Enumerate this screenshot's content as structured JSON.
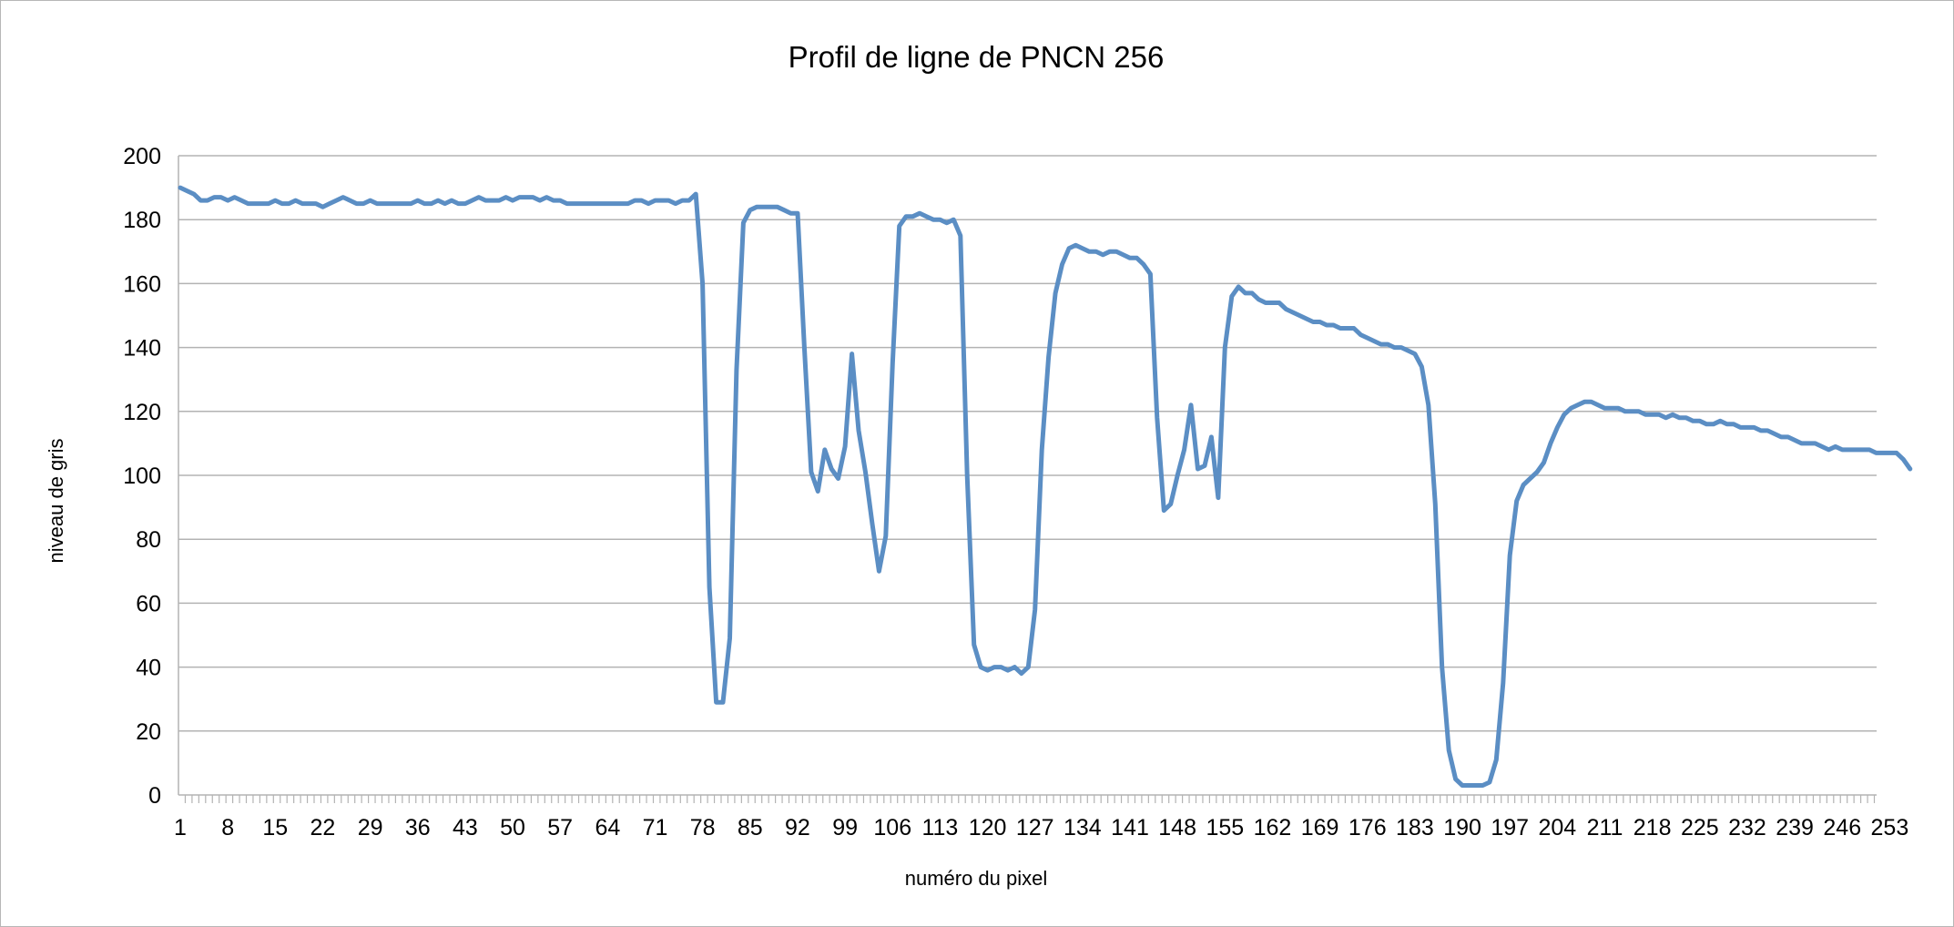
{
  "chart_data": {
    "type": "line",
    "title": "Profil de ligne de PNCN 256",
    "xlabel": "numéro du pixel",
    "ylabel": "niveau de gris",
    "ylim": [
      0,
      200
    ],
    "yticks": [
      0,
      20,
      40,
      60,
      80,
      100,
      120,
      140,
      160,
      180,
      200
    ],
    "xlim": [
      1,
      256
    ],
    "xtick_labels": [
      "1",
      "8",
      "15",
      "22",
      "29",
      "36",
      "43",
      "50",
      "57",
      "64",
      "71",
      "78",
      "85",
      "92",
      "99",
      "106",
      "113",
      "120",
      "127",
      "134",
      "141",
      "148",
      "155",
      "162",
      "169",
      "176",
      "183",
      "190",
      "197",
      "204",
      "211",
      "218",
      "225",
      "232",
      "239",
      "246",
      "253"
    ],
    "grid": "horizontal",
    "legend": "none",
    "line_color": "#5b8ec4",
    "x": [
      1,
      2,
      3,
      4,
      5,
      6,
      7,
      8,
      9,
      10,
      11,
      12,
      13,
      14,
      15,
      16,
      17,
      18,
      19,
      20,
      21,
      22,
      23,
      24,
      25,
      26,
      27,
      28,
      29,
      30,
      31,
      32,
      33,
      34,
      35,
      36,
      37,
      38,
      39,
      40,
      41,
      42,
      43,
      44,
      45,
      46,
      47,
      48,
      49,
      50,
      51,
      52,
      53,
      54,
      55,
      56,
      57,
      58,
      59,
      60,
      61,
      62,
      63,
      64,
      65,
      66,
      67,
      68,
      69,
      70,
      71,
      72,
      73,
      74,
      75,
      76,
      77,
      78,
      79,
      80,
      81,
      82,
      83,
      84,
      85,
      86,
      87,
      88,
      89,
      90,
      91,
      92,
      93,
      94,
      95,
      96,
      97,
      98,
      99,
      100,
      101,
      102,
      103,
      104,
      105,
      106,
      107,
      108,
      109,
      110,
      111,
      112,
      113,
      114,
      115,
      116,
      117,
      118,
      119,
      120,
      121,
      122,
      123,
      124,
      125,
      126,
      127,
      128,
      129,
      130,
      131,
      132,
      133,
      134,
      135,
      136,
      137,
      138,
      139,
      140,
      141,
      142,
      143,
      144,
      145,
      146,
      147,
      148,
      149,
      150,
      151,
      152,
      153,
      154,
      155,
      156,
      157,
      158,
      159,
      160,
      161,
      162,
      163,
      164,
      165,
      166,
      167,
      168,
      169,
      170,
      171,
      172,
      173,
      174,
      175,
      176,
      177,
      178,
      179,
      180,
      181,
      182,
      183,
      184,
      185,
      186,
      187,
      188,
      189,
      190,
      191,
      192,
      193,
      194,
      195,
      196,
      197,
      198,
      199,
      200,
      201,
      202,
      203,
      204,
      205,
      206,
      207,
      208,
      209,
      210,
      211,
      212,
      213,
      214,
      215,
      216,
      217,
      218,
      219,
      220,
      221,
      222,
      223,
      224,
      225,
      226,
      227,
      228,
      229,
      230,
      231,
      232,
      233,
      234,
      235,
      236,
      237,
      238,
      239,
      240,
      241,
      242,
      243,
      244,
      245,
      246,
      247,
      248,
      249,
      250,
      251,
      252,
      253,
      254,
      255,
      256
    ],
    "series": [
      {
        "values": [
          190,
          189,
          188,
          186,
          186,
          187,
          187,
          186,
          187,
          186,
          185,
          185,
          185,
          185,
          186,
          185,
          185,
          186,
          185,
          185,
          185,
          184,
          185,
          186,
          187,
          186,
          185,
          185,
          186,
          185,
          185,
          185,
          185,
          185,
          185,
          186,
          185,
          185,
          186,
          185,
          186,
          185,
          185,
          186,
          187,
          186,
          186,
          186,
          187,
          186,
          187,
          187,
          187,
          186,
          187,
          186,
          186,
          185,
          185,
          185,
          185,
          185,
          185,
          185,
          185,
          185,
          185,
          186,
          186,
          185,
          186,
          186,
          186,
          185,
          186,
          186,
          188,
          160,
          65,
          29,
          29,
          49,
          133,
          179,
          183,
          184,
          184,
          184,
          184,
          183,
          182,
          182,
          140,
          101,
          95,
          108,
          102,
          99,
          109,
          138,
          114,
          101,
          85,
          70,
          81,
          135,
          178,
          181,
          181,
          182,
          181,
          180,
          180,
          179,
          180,
          175,
          100,
          47,
          40,
          39,
          40,
          40,
          39,
          40,
          38,
          40,
          58,
          108,
          137,
          157,
          166,
          171,
          172,
          171,
          170,
          170,
          169,
          170,
          170,
          169,
          168,
          168,
          166,
          163,
          118,
          89,
          91,
          100,
          108,
          122,
          102,
          103,
          112,
          93,
          140,
          156,
          159,
          157,
          157,
          155,
          154,
          154,
          154,
          152,
          151,
          150,
          149,
          148,
          148,
          147,
          147,
          146,
          146,
          146,
          144,
          143,
          142,
          141,
          141,
          140,
          140,
          139,
          138,
          134,
          122,
          91,
          40,
          14,
          5,
          3,
          3,
          3,
          3,
          4,
          11,
          35,
          75,
          92,
          97,
          99,
          101,
          104,
          110,
          115,
          119,
          121,
          122,
          123,
          123,
          122,
          121,
          121,
          121,
          120,
          120,
          120,
          119,
          119,
          119,
          118,
          119,
          118,
          118,
          117,
          117,
          116,
          116,
          117,
          116,
          116,
          115,
          115,
          115,
          114,
          114,
          113,
          112,
          112,
          111,
          110,
          110,
          110,
          109,
          108,
          109,
          108,
          108,
          108,
          108,
          108,
          107,
          107,
          107,
          107,
          105,
          102
        ]
      }
    ]
  }
}
